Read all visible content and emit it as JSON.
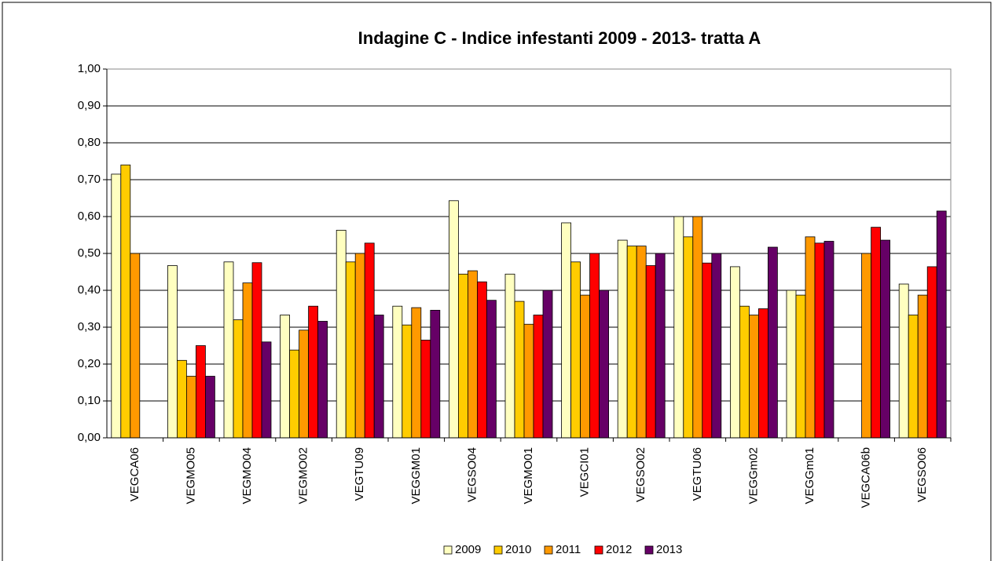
{
  "chart_data": {
    "type": "bar",
    "title": "Indagine C - Indice infestanti 2009 - 2013- tratta A",
    "categories": [
      "VEGCA06",
      "VEGMO05",
      "VEGMO04",
      "VEGMO02",
      "VEGTU09",
      "VEGGM01",
      "VEGSO04",
      "VEGMO01",
      "VEGCI01",
      "VEGSO02",
      "VEGTU06",
      "VEGGm02",
      "VEGGm01",
      "VEGCA06b",
      "VEGSO06"
    ],
    "series": [
      {
        "name": "2009",
        "color": "#ffffc0",
        "values": [
          0.715,
          0.467,
          0.477,
          0.333,
          0.563,
          0.357,
          0.643,
          0.444,
          0.583,
          0.536,
          0.6,
          0.464,
          0.4,
          null,
          0.417
        ]
      },
      {
        "name": "2010",
        "color": "#ffcc00",
        "values": [
          0.74,
          0.21,
          0.32,
          0.238,
          0.477,
          0.306,
          0.444,
          0.37,
          0.477,
          0.52,
          0.545,
          0.357,
          0.387,
          null,
          0.333
        ]
      },
      {
        "name": "2011",
        "color": "#ff9900",
        "values": [
          0.5,
          0.167,
          0.42,
          0.292,
          0.5,
          0.353,
          0.453,
          0.308,
          0.387,
          0.52,
          0.6,
          0.333,
          0.545,
          0.5,
          0.387
        ]
      },
      {
        "name": "2012",
        "color": "#ff0000",
        "values": [
          null,
          0.25,
          0.475,
          0.357,
          0.528,
          0.265,
          0.423,
          0.333,
          0.5,
          0.467,
          0.474,
          0.35,
          0.528,
          0.571,
          0.464
        ]
      },
      {
        "name": "2013",
        "color": "#660066",
        "values": [
          null,
          0.167,
          0.26,
          0.316,
          0.333,
          0.346,
          0.373,
          0.4,
          0.4,
          0.5,
          0.5,
          0.517,
          0.533,
          0.536,
          0.615
        ]
      }
    ],
    "ylim": [
      0,
      1
    ],
    "yticks": [
      {
        "value": 0,
        "label": "0,00"
      },
      {
        "value": 0.1,
        "label": "0,10"
      },
      {
        "value": 0.2,
        "label": "0,20"
      },
      {
        "value": 0.3,
        "label": "0,30"
      },
      {
        "value": 0.4,
        "label": "0,40"
      },
      {
        "value": 0.5,
        "label": "0,50"
      },
      {
        "value": 0.6,
        "label": "0,60"
      },
      {
        "value": 0.7,
        "label": "0,70"
      },
      {
        "value": 0.8,
        "label": "0,80"
      },
      {
        "value": 0.9,
        "label": "0,90"
      },
      {
        "value": 1,
        "label": "1,00"
      }
    ],
    "grid": true,
    "legend": "bottom"
  }
}
